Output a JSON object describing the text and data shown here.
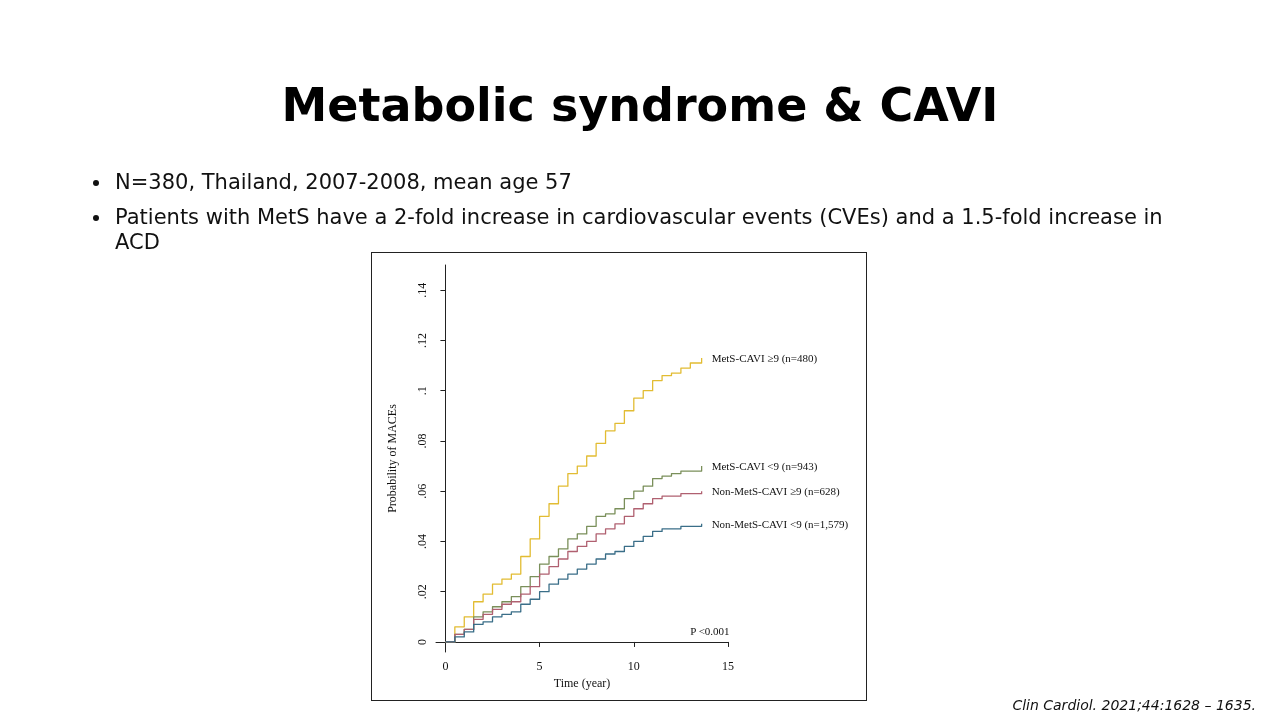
{
  "chart_data": {
    "type": "step",
    "title": "Metabolic syndrome & CAVI",
    "annotations": [
      "N=380, Thailand, 2007-2008, mean age 57",
      "Patients with MetS have a 2-fold increase in cardiovascular events (CVEs) and a 1.5-fold increase in ACD",
      "P <0.001",
      "Clin Cardiol. 2021;44:1628 – 1635."
    ],
    "xlabel": "Time (year)",
    "ylabel": "Probability of MACEs",
    "x": [
      0,
      0.5,
      1,
      1.5,
      2,
      2.5,
      3,
      3.5,
      4,
      4.5,
      5,
      5.5,
      6,
      6.5,
      7,
      7.5,
      8,
      8.5,
      9,
      9.5,
      10,
      10.5,
      11,
      11.5,
      12,
      12.5,
      13,
      13.6
    ],
    "series": [
      {
        "name": "MetS-CAVI ≥9 (n=480)",
        "color": "#e2bc32",
        "values": [
          0,
          0.006,
          0.01,
          0.016,
          0.019,
          0.023,
          0.025,
          0.027,
          0.034,
          0.041,
          0.05,
          0.055,
          0.062,
          0.067,
          0.07,
          0.074,
          0.079,
          0.084,
          0.087,
          0.092,
          0.097,
          0.1,
          0.104,
          0.106,
          0.107,
          0.109,
          0.111,
          0.113
        ]
      },
      {
        "name": "MetS-CAVI <9 (n=943)",
        "color": "#7a8f5a",
        "values": [
          0,
          0.003,
          0.005,
          0.01,
          0.012,
          0.014,
          0.016,
          0.018,
          0.022,
          0.026,
          0.031,
          0.034,
          0.037,
          0.041,
          0.043,
          0.046,
          0.05,
          0.051,
          0.053,
          0.057,
          0.06,
          0.062,
          0.065,
          0.066,
          0.067,
          0.068,
          0.068,
          0.07
        ]
      },
      {
        "name": "Non-MetS-CAVI ≥9 (n=628)",
        "color": "#b06070",
        "values": [
          0,
          0.003,
          0.005,
          0.009,
          0.011,
          0.013,
          0.015,
          0.016,
          0.019,
          0.022,
          0.027,
          0.03,
          0.033,
          0.036,
          0.038,
          0.04,
          0.043,
          0.045,
          0.047,
          0.05,
          0.053,
          0.055,
          0.057,
          0.058,
          0.058,
          0.059,
          0.059,
          0.06
        ]
      },
      {
        "name": "Non-MetS-CAVI <9 (n=1,579)",
        "color": "#3a6e88",
        "values": [
          0,
          0.002,
          0.004,
          0.007,
          0.008,
          0.01,
          0.011,
          0.012,
          0.015,
          0.017,
          0.02,
          0.023,
          0.025,
          0.027,
          0.029,
          0.031,
          0.033,
          0.035,
          0.036,
          0.038,
          0.04,
          0.042,
          0.044,
          0.045,
          0.045,
          0.046,
          0.046,
          0.047
        ]
      }
    ],
    "xlim": [
      -0.5,
      15
    ],
    "xticks": [
      0,
      5,
      10,
      15
    ],
    "ylim": [
      -0.004,
      0.15
    ],
    "yticks": [
      0,
      {
        "value": 0.02,
        "label": ".02"
      },
      {
        "value": 0.04,
        "label": ".04"
      },
      {
        "value": 0.06,
        "label": ".06"
      },
      {
        "value": 0.08,
        "label": ".08"
      },
      {
        "value": 0.1,
        "label": ".1"
      },
      {
        "value": 0.12,
        "label": ".12"
      },
      {
        "value": 0.14,
        "label": ".14"
      }
    ],
    "grid": false,
    "legend": false
  }
}
